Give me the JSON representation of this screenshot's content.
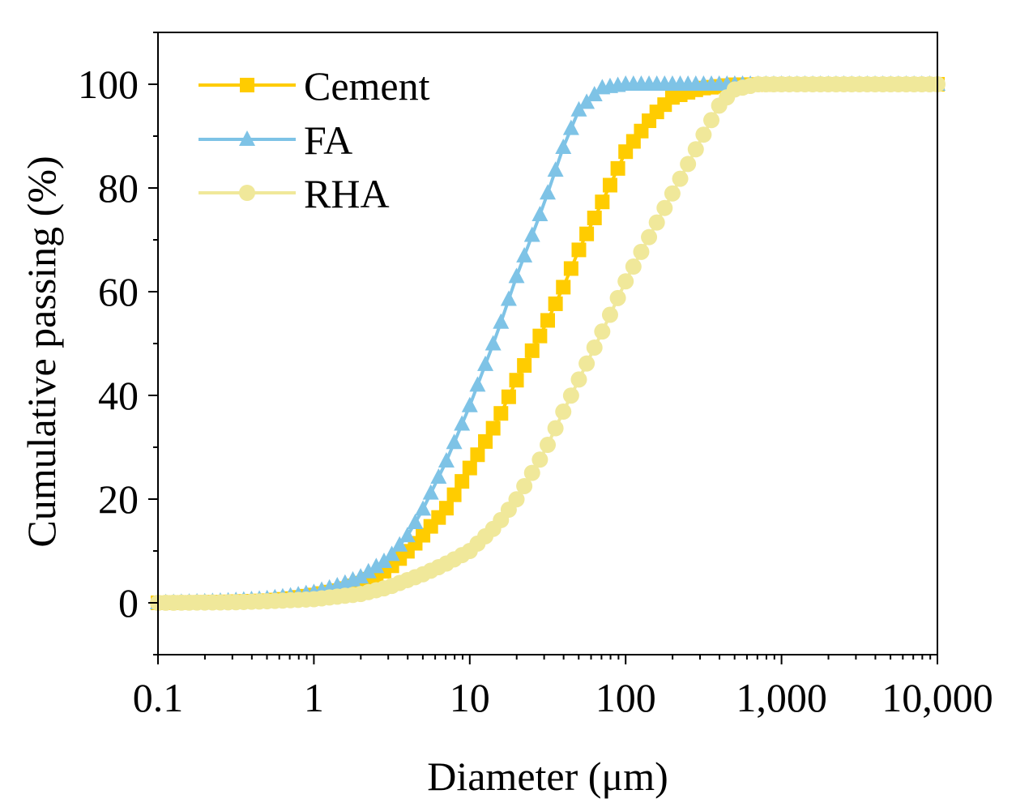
{
  "chart_data": {
    "type": "line",
    "xscale": "log",
    "xlim": [
      0.1,
      10000
    ],
    "ylim": [
      -10,
      110
    ],
    "xlabel": "Diameter (μm)",
    "ylabel": "Cumulative passing (%)",
    "xticks": [
      0.1,
      1,
      10,
      100,
      1000,
      10000
    ],
    "xtick_labels": [
      "0.1",
      "1",
      "10",
      "100",
      "1,000",
      "10,000"
    ],
    "yticks": [
      0,
      20,
      40,
      60,
      80,
      100
    ],
    "ytick_labels": [
      "0",
      "20",
      "40",
      "60",
      "80",
      "100"
    ],
    "legend_position": "top-left",
    "series": [
      {
        "name": "Cement",
        "color": "#FFCC00",
        "marker": "square",
        "points": [
          [
            0.1,
            0
          ],
          [
            0.2,
            0.1
          ],
          [
            0.3,
            0.2
          ],
          [
            0.5,
            0.4
          ],
          [
            0.7,
            0.8
          ],
          [
            1,
            1.5
          ],
          [
            1.5,
            2.5
          ],
          [
            2,
            3.8
          ],
          [
            3,
            6.5
          ],
          [
            4,
            10
          ],
          [
            5,
            13
          ],
          [
            7,
            18
          ],
          [
            10,
            26
          ],
          [
            15,
            35
          ],
          [
            20,
            43
          ],
          [
            30,
            53
          ],
          [
            40,
            61
          ],
          [
            50,
            68
          ],
          [
            70,
            77
          ],
          [
            100,
            87
          ],
          [
            150,
            94
          ],
          [
            200,
            97.5
          ],
          [
            300,
            99.2
          ],
          [
            500,
            99.9
          ],
          [
            1000,
            100
          ],
          [
            10000,
            100
          ]
        ]
      },
      {
        "name": "FA",
        "color": "#7EC3E6",
        "marker": "triangle",
        "points": [
          [
            0.1,
            0
          ],
          [
            0.2,
            0.2
          ],
          [
            0.3,
            0.4
          ],
          [
            0.5,
            0.8
          ],
          [
            0.7,
            1.3
          ],
          [
            1,
            2
          ],
          [
            1.5,
            3.5
          ],
          [
            2,
            5
          ],
          [
            3,
            8.5
          ],
          [
            4,
            13
          ],
          [
            5,
            18
          ],
          [
            7,
            27
          ],
          [
            10,
            38
          ],
          [
            15,
            52
          ],
          [
            20,
            63
          ],
          [
            30,
            77
          ],
          [
            40,
            88
          ],
          [
            50,
            95
          ],
          [
            70,
            99.3
          ],
          [
            100,
            100
          ],
          [
            1000,
            100
          ],
          [
            10000,
            100
          ]
        ]
      },
      {
        "name": "RHA",
        "color": "#F0E89A",
        "marker": "circle",
        "points": [
          [
            0.1,
            0
          ],
          [
            0.3,
            0.1
          ],
          [
            0.5,
            0.3
          ],
          [
            1,
            0.7
          ],
          [
            2,
            1.7
          ],
          [
            3,
            3
          ],
          [
            5,
            5.5
          ],
          [
            7,
            7.5
          ],
          [
            10,
            10
          ],
          [
            15,
            15
          ],
          [
            20,
            20
          ],
          [
            30,
            29
          ],
          [
            40,
            37
          ],
          [
            50,
            43
          ],
          [
            70,
            52
          ],
          [
            100,
            62
          ],
          [
            150,
            72
          ],
          [
            200,
            79
          ],
          [
            300,
            89
          ],
          [
            400,
            96
          ],
          [
            500,
            99
          ],
          [
            700,
            100
          ],
          [
            1000,
            100
          ],
          [
            10000,
            100
          ]
        ]
      }
    ]
  }
}
